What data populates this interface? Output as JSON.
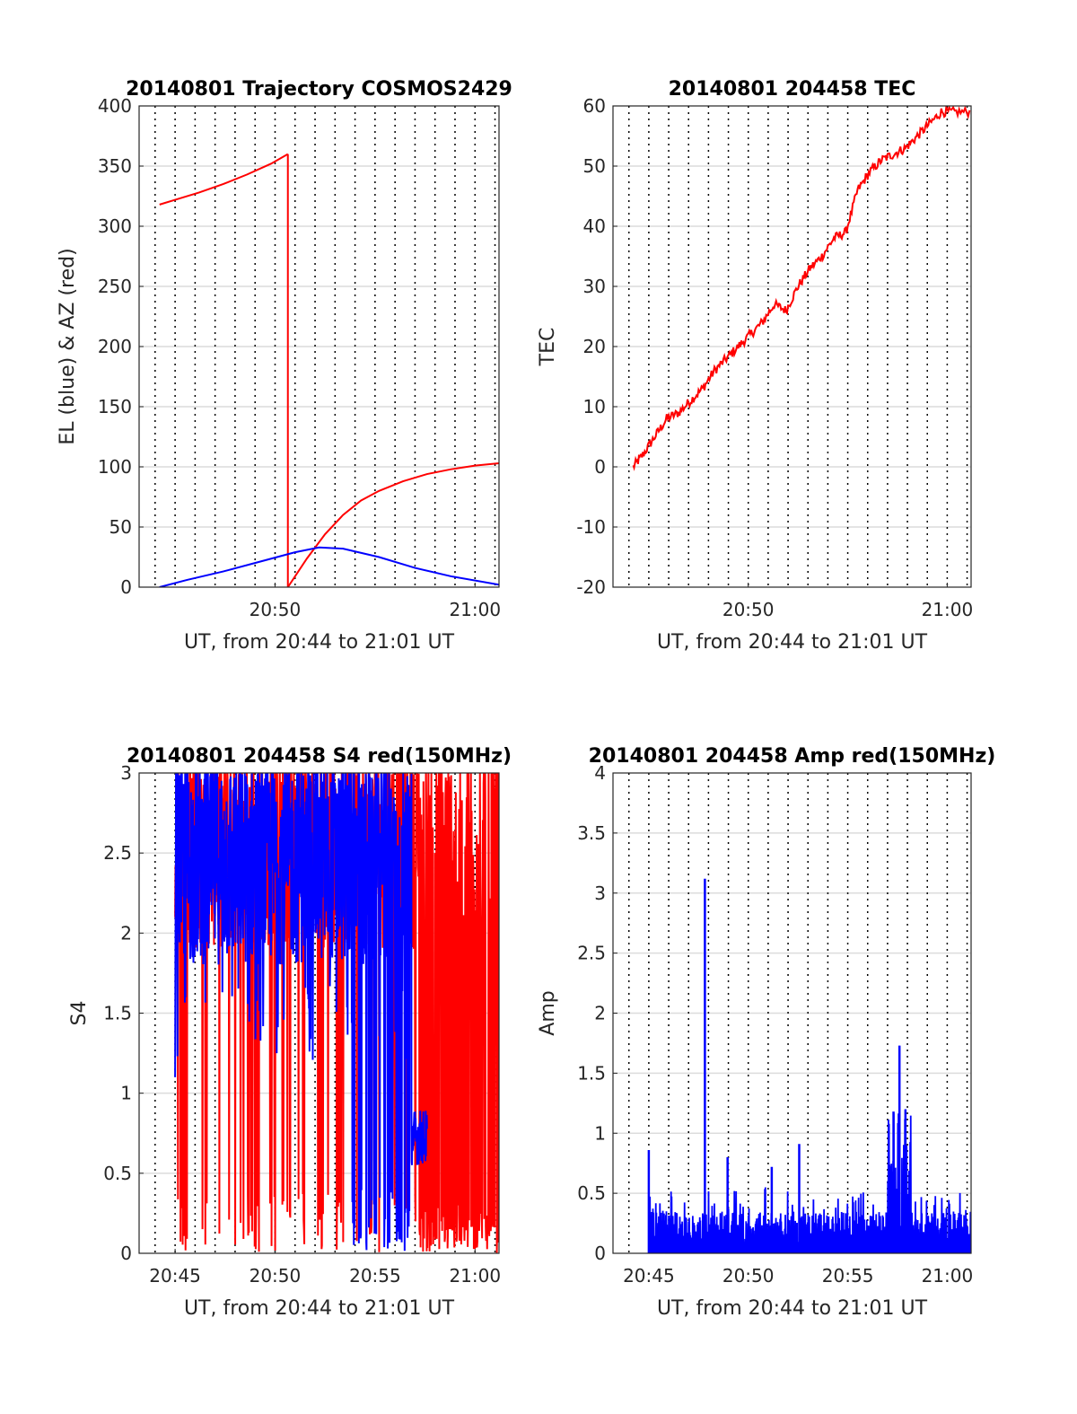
{
  "colors": {
    "red": "#ff0000",
    "blue": "#0000ff",
    "grid": "#dcdcdc",
    "dotted": "#000000",
    "axis": "#262626"
  },
  "chart_data": [
    {
      "id": "trajectory",
      "type": "line",
      "title": "20140801 Trajectory COSMOS2429",
      "xlabel": "UT, from 20:44 to 21:01 UT",
      "ylabel": "EL (blue) & AZ (red)",
      "xlim": [
        20.72,
        21.02
      ],
      "ylim": [
        0,
        400
      ],
      "yticks": [
        "0",
        "50",
        "100",
        "150",
        "200",
        "250",
        "300",
        "350",
        "400"
      ],
      "xticks": [
        {
          "label": "20:50",
          "value": 20.8333
        },
        {
          "label": "21:00",
          "value": 21.0
        }
      ],
      "grid": true,
      "series": [
        {
          "color": "red",
          "x": [
            20.737,
            20.75,
            20.77,
            20.79,
            20.81,
            20.83,
            20.844
          ],
          "y": [
            318,
            322,
            328,
            335,
            343,
            352,
            360
          ]
        },
        {
          "color": "red",
          "x": [
            20.844,
            20.844
          ],
          "y": [
            360,
            0
          ]
        },
        {
          "color": "red",
          "x": [
            20.844,
            20.86,
            20.875,
            20.89,
            20.905,
            20.92,
            20.94,
            20.96,
            20.98,
            21.0,
            21.02
          ],
          "y": [
            0,
            24,
            44,
            60,
            72,
            80,
            88,
            94,
            98,
            101,
            103
          ]
        },
        {
          "color": "blue",
          "x": [
            20.737,
            20.76,
            20.79,
            20.82,
            20.85,
            20.87,
            20.89,
            20.92,
            20.95,
            20.98,
            21.02
          ],
          "y": [
            0,
            6,
            13,
            21,
            29,
            33,
            32,
            25,
            16,
            9,
            2
          ]
        }
      ]
    },
    {
      "id": "tec",
      "type": "line",
      "title": "20140801 204458 TEC",
      "xlabel": "UT, from 20:44 to 21:01 UT",
      "ylabel": "TEC",
      "xlim": [
        20.72,
        21.02
      ],
      "ylim": [
        -20,
        60
      ],
      "yticks": [
        "-20",
        "-10",
        "0",
        "10",
        "20",
        "30",
        "40",
        "50",
        "60"
      ],
      "xticks": [
        {
          "label": "20:50",
          "value": 20.8333
        },
        {
          "label": "21:00",
          "value": 21.0
        }
      ],
      "grid": true,
      "series": [
        {
          "color": "red",
          "x": [
            20.737,
            20.745,
            20.755,
            20.765,
            20.775,
            20.785,
            20.795,
            20.805,
            20.815,
            20.825,
            20.835,
            20.845,
            20.855,
            20.865,
            20.875,
            20.885,
            20.895,
            20.905,
            20.915,
            20.925,
            20.935,
            20.945,
            20.955,
            20.965,
            20.975,
            20.985,
            20.995,
            21.005,
            21.02
          ],
          "y": [
            0,
            2,
            5,
            8,
            9,
            11,
            13,
            16,
            18,
            20,
            22,
            24,
            27,
            26,
            30,
            33,
            35,
            38,
            39,
            46,
            49,
            51,
            52,
            53,
            55,
            57,
            59,
            59,
            59
          ]
        }
      ]
    },
    {
      "id": "s4",
      "type": "line",
      "title": "20140801 204458 S4 red(150MHz)",
      "xlabel": "UT, from 20:44 to 21:01 UT",
      "ylabel": "S4",
      "xlim": [
        20.72,
        21.02
      ],
      "ylim": [
        0,
        3
      ],
      "yticks": [
        "0",
        "0.5",
        "1",
        "1.5",
        "2",
        "2.5",
        "3"
      ],
      "xticks": [
        {
          "label": "20:45",
          "value": 20.75
        },
        {
          "label": "20:50",
          "value": 20.8333
        },
        {
          "label": "20:55",
          "value": 20.9167
        },
        {
          "label": "21:00",
          "value": 21.0
        }
      ],
      "grid": true,
      "series": [
        {
          "color": "red",
          "note_hidden": "noisy",
          "x": [
            20.75,
            21.02
          ],
          "y": [
            2.3,
            2.5
          ]
        },
        {
          "color": "blue",
          "x": [
            20.75,
            20.947
          ],
          "y": [
            1.1,
            3
          ]
        }
      ]
    },
    {
      "id": "amp",
      "type": "line",
      "title": "20140801 204458 Amp red(150MHz)",
      "xlabel": "UT, from 20:44 to 21:01 UT",
      "ylabel": "Amp",
      "xlim": [
        20.72,
        21.02
      ],
      "ylim": [
        0,
        4
      ],
      "yticks": [
        "0",
        "0.5",
        "1",
        "1.5",
        "2",
        "2.5",
        "3",
        "3.5",
        "4"
      ],
      "xticks": [
        {
          "label": "20:45",
          "value": 20.75
        },
        {
          "label": "20:50",
          "value": 20.8333
        },
        {
          "label": "20:55",
          "value": 20.9167
        },
        {
          "label": "21:00",
          "value": 21.0
        }
      ],
      "grid": true,
      "series": [
        {
          "color": "blue",
          "spikes": [
            {
              "x": 20.75,
              "y": 0.86
            },
            {
              "x": 20.797,
              "y": 3.12
            },
            {
              "x": 20.816,
              "y": 0.8
            },
            {
              "x": 20.853,
              "y": 0.72
            },
            {
              "x": 20.876,
              "y": 0.91
            },
            {
              "x": 20.955,
              "y": 1.18
            },
            {
              "x": 20.96,
              "y": 1.73
            },
            {
              "x": 20.965,
              "y": 1.2
            }
          ]
        }
      ]
    }
  ]
}
